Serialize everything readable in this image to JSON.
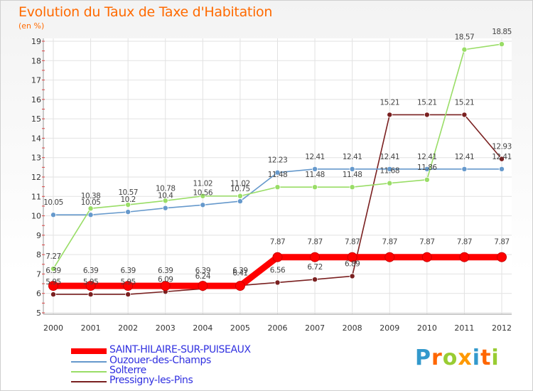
{
  "chart_data": {
    "type": "line",
    "title": "Evolution du Taux de Taxe d'Habitation",
    "subtitle": "(en %)",
    "x": [
      "2000",
      "2001",
      "2002",
      "2003",
      "2004",
      "2005",
      "2006",
      "2007",
      "2008",
      "2009",
      "2010",
      "2011",
      "2012"
    ],
    "ylim": [
      5,
      19
    ],
    "yticks": [
      "5",
      "6",
      "7",
      "8",
      "9",
      "10",
      "11",
      "12",
      "13",
      "14",
      "15",
      "16",
      "17",
      "18",
      "19"
    ],
    "grid": true,
    "legend": "bottom-left",
    "series": [
      {
        "name": "SAINT-HILAIRE-SUR-PUISEAUX",
        "color": "#ff0000",
        "values": [
          6.39,
          6.39,
          6.39,
          6.39,
          6.39,
          6.39,
          7.87,
          7.87,
          7.87,
          7.87,
          7.87,
          7.87,
          7.87
        ],
        "labels": [
          "6.39",
          "6.39",
          "6.39",
          "6.39",
          "6.39",
          "6.39",
          "7.87",
          "7.87",
          "7.87",
          "7.87",
          "7.87",
          "7.87",
          "7.87"
        ]
      },
      {
        "name": "Ouzouer-des-Champs",
        "color": "#6699cc",
        "values": [
          10.05,
          10.05,
          10.2,
          10.4,
          10.56,
          10.75,
          12.23,
          12.41,
          12.41,
          12.41,
          12.41,
          12.41,
          12.41
        ],
        "labels": [
          "10.05",
          "10.05",
          "10.2",
          "10.4",
          "10.56",
          "10.75",
          "12.23",
          "12.41",
          "12.41",
          "12.41",
          "12.41",
          "12.41",
          "12.41"
        ]
      },
      {
        "name": "Solterre",
        "color": "#99dd66",
        "values": [
          7.27,
          10.38,
          10.57,
          10.78,
          11.02,
          11.02,
          11.48,
          11.48,
          11.48,
          11.68,
          11.86,
          18.57,
          18.85
        ],
        "labels": [
          "7.27",
          "10.38",
          "10.57",
          "10.78",
          "11.02",
          "11.02",
          "11.48",
          "11.48",
          "11.48",
          "11.68",
          "11.86",
          "18.57",
          "18.85"
        ]
      },
      {
        "name": "Pressigny-les-Pins",
        "color": "#7a2020",
        "values": [
          5.95,
          5.95,
          5.95,
          6.09,
          6.24,
          6.41,
          6.56,
          6.72,
          6.89,
          15.21,
          15.21,
          15.21,
          12.93
        ],
        "labels": [
          "5.95",
          "5.95",
          "5.95",
          "6.09",
          "6.24",
          "6.41",
          "6.56",
          "6.72",
          "6.89",
          "15.21",
          "15.21",
          "15.21",
          "12.93"
        ]
      }
    ]
  },
  "logo": {
    "letters": [
      "P",
      "r",
      "o",
      "x",
      "i",
      "t",
      "i"
    ],
    "colors": [
      "#3399cc",
      "#ff6600",
      "#99cc33",
      "#ff9900",
      "#3399cc",
      "#ff6600",
      "#99cc33"
    ]
  }
}
